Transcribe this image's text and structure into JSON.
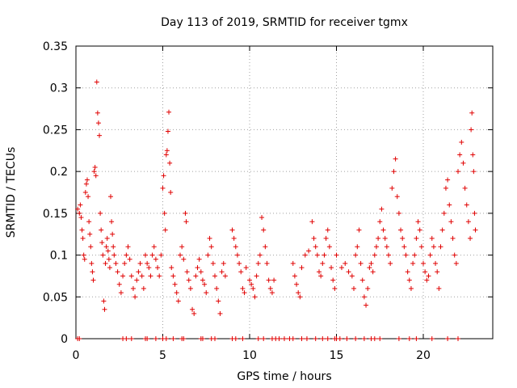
{
  "chart_data": {
    "type": "scatter",
    "title": "Day 113 of 2019, SRMTID for receiver tgmx",
    "xlabel": "GPS time / hours",
    "ylabel": "SRMTID / TECUs",
    "xlim": [
      0,
      24
    ],
    "ylim": [
      0,
      0.35
    ],
    "xticks": [
      {
        "value": 0,
        "label": "0"
      },
      {
        "value": 5,
        "label": "5"
      },
      {
        "value": 10,
        "label": "10"
      },
      {
        "value": 15,
        "label": "15"
      },
      {
        "value": 20,
        "label": "20"
      }
    ],
    "yticks": [
      {
        "value": 0,
        "label": "0"
      },
      {
        "value": 0.05,
        "label": "0.05"
      },
      {
        "value": 0.1,
        "label": "0.1"
      },
      {
        "value": 0.15,
        "label": "0.15"
      },
      {
        "value": 0.2,
        "label": "0.2"
      },
      {
        "value": 0.25,
        "label": "0.25"
      },
      {
        "value": 0.3,
        "label": "0.3"
      },
      {
        "value": 0.35,
        "label": "0.35"
      }
    ],
    "grid": true,
    "marker": "+",
    "series_color": "#e00000",
    "series": [
      {
        "name": "SRMTID",
        "points": [
          [
            0.1,
            0.155
          ],
          [
            0.2,
            0.15
          ],
          [
            0.25,
            0.16
          ],
          [
            0.3,
            0.145
          ],
          [
            0.35,
            0.13
          ],
          [
            0.4,
            0.12
          ],
          [
            0.45,
            0.1
          ],
          [
            0.5,
            0.095
          ],
          [
            0.55,
            0.175
          ],
          [
            0.6,
            0.185
          ],
          [
            0.65,
            0.19
          ],
          [
            0.7,
            0.17
          ],
          [
            0.75,
            0.14
          ],
          [
            0.8,
            0.125
          ],
          [
            0.85,
            0.11
          ],
          [
            0.9,
            0.09
          ],
          [
            0.95,
            0.08
          ],
          [
            1.0,
            0.07
          ],
          [
            1.05,
            0.2
          ],
          [
            1.1,
            0.205
          ],
          [
            1.15,
            0.195
          ],
          [
            1.2,
            0.307
          ],
          [
            1.25,
            0.27
          ],
          [
            1.3,
            0.258
          ],
          [
            1.35,
            0.243
          ],
          [
            1.4,
            0.15
          ],
          [
            1.45,
            0.13
          ],
          [
            1.5,
            0.115
          ],
          [
            1.55,
            0.1
          ],
          [
            1.6,
            0.045
          ],
          [
            1.65,
            0.035
          ],
          [
            1.7,
            0.09
          ],
          [
            1.75,
            0.11
          ],
          [
            1.8,
            0.12
          ],
          [
            1.85,
            0.105
          ],
          [
            1.9,
            0.095
          ],
          [
            1.95,
            0.085
          ],
          [
            2.0,
            0.17
          ],
          [
            2.05,
            0.14
          ],
          [
            2.1,
            0.125
          ],
          [
            2.15,
            0.11
          ],
          [
            2.2,
            0.1
          ],
          [
            2.3,
            0.09
          ],
          [
            2.4,
            0.08
          ],
          [
            2.5,
            0.065
          ],
          [
            2.6,
            0.055
          ],
          [
            2.7,
            0.075
          ],
          [
            2.8,
            0.09
          ],
          [
            2.9,
            0.1
          ],
          [
            3.0,
            0.11
          ],
          [
            3.1,
            0.095
          ],
          [
            3.2,
            0.075
          ],
          [
            3.3,
            0.06
          ],
          [
            3.4,
            0.05
          ],
          [
            3.5,
            0.07
          ],
          [
            3.6,
            0.08
          ],
          [
            3.7,
            0.09
          ],
          [
            3.8,
            0.075
          ],
          [
            3.9,
            0.06
          ],
          [
            4.0,
            0.1
          ],
          [
            4.1,
            0.09
          ],
          [
            4.2,
            0.085
          ],
          [
            4.3,
            0.075
          ],
          [
            4.4,
            0.1
          ],
          [
            4.5,
            0.11
          ],
          [
            4.6,
            0.095
          ],
          [
            4.7,
            0.085
          ],
          [
            4.8,
            0.075
          ],
          [
            4.9,
            0.1
          ],
          [
            5.0,
            0.18
          ],
          [
            5.05,
            0.195
          ],
          [
            5.1,
            0.15
          ],
          [
            5.15,
            0.13
          ],
          [
            5.2,
            0.22
          ],
          [
            5.25,
            0.225
          ],
          [
            5.3,
            0.248
          ],
          [
            5.35,
            0.271
          ],
          [
            5.4,
            0.21
          ],
          [
            5.45,
            0.175
          ],
          [
            5.5,
            0.085
          ],
          [
            5.6,
            0.075
          ],
          [
            5.7,
            0.065
          ],
          [
            5.8,
            0.055
          ],
          [
            5.9,
            0.045
          ],
          [
            6.0,
            0.1
          ],
          [
            6.1,
            0.11
          ],
          [
            6.2,
            0.095
          ],
          [
            6.3,
            0.15
          ],
          [
            6.35,
            0.14
          ],
          [
            6.4,
            0.08
          ],
          [
            6.5,
            0.07
          ],
          [
            6.6,
            0.06
          ],
          [
            6.7,
            0.035
          ],
          [
            6.8,
            0.03
          ],
          [
            6.9,
            0.075
          ],
          [
            7.0,
            0.085
          ],
          [
            7.1,
            0.095
          ],
          [
            7.2,
            0.08
          ],
          [
            7.3,
            0.07
          ],
          [
            7.4,
            0.065
          ],
          [
            7.5,
            0.055
          ],
          [
            7.6,
            0.1
          ],
          [
            7.7,
            0.12
          ],
          [
            7.8,
            0.11
          ],
          [
            7.9,
            0.09
          ],
          [
            8.0,
            0.075
          ],
          [
            8.1,
            0.06
          ],
          [
            8.2,
            0.045
          ],
          [
            8.3,
            0.03
          ],
          [
            8.4,
            0.08
          ],
          [
            8.5,
            0.09
          ],
          [
            8.6,
            0.075
          ],
          [
            9.0,
            0.13
          ],
          [
            9.1,
            0.12
          ],
          [
            9.2,
            0.11
          ],
          [
            9.3,
            0.1
          ],
          [
            9.4,
            0.09
          ],
          [
            9.5,
            0.08
          ],
          [
            9.6,
            0.06
          ],
          [
            9.7,
            0.055
          ],
          [
            9.8,
            0.085
          ],
          [
            10.0,
            0.07
          ],
          [
            10.1,
            0.065
          ],
          [
            10.2,
            0.06
          ],
          [
            10.3,
            0.05
          ],
          [
            10.4,
            0.075
          ],
          [
            10.5,
            0.09
          ],
          [
            10.6,
            0.1
          ],
          [
            10.7,
            0.145
          ],
          [
            10.8,
            0.13
          ],
          [
            10.9,
            0.11
          ],
          [
            11.0,
            0.09
          ],
          [
            11.1,
            0.07
          ],
          [
            11.2,
            0.06
          ],
          [
            11.3,
            0.055
          ],
          [
            11.4,
            0.07
          ],
          [
            12.5,
            0.09
          ],
          [
            12.6,
            0.075
          ],
          [
            12.7,
            0.065
          ],
          [
            12.8,
            0.055
          ],
          [
            12.9,
            0.05
          ],
          [
            13.0,
            0.085
          ],
          [
            13.2,
            0.1
          ],
          [
            13.4,
            0.105
          ],
          [
            13.6,
            0.14
          ],
          [
            13.7,
            0.12
          ],
          [
            13.8,
            0.11
          ],
          [
            13.9,
            0.1
          ],
          [
            14.0,
            0.08
          ],
          [
            14.1,
            0.075
          ],
          [
            14.2,
            0.09
          ],
          [
            14.3,
            0.1
          ],
          [
            14.4,
            0.12
          ],
          [
            14.5,
            0.13
          ],
          [
            14.6,
            0.11
          ],
          [
            14.7,
            0.085
          ],
          [
            14.8,
            0.07
          ],
          [
            14.9,
            0.06
          ],
          [
            15.0,
            0.1
          ],
          [
            15.3,
            0.085
          ],
          [
            15.5,
            0.09
          ],
          [
            15.7,
            0.08
          ],
          [
            15.9,
            0.075
          ],
          [
            16.0,
            0.06
          ],
          [
            16.1,
            0.1
          ],
          [
            16.2,
            0.11
          ],
          [
            16.3,
            0.13
          ],
          [
            16.4,
            0.09
          ],
          [
            16.5,
            0.07
          ],
          [
            16.6,
            0.05
          ],
          [
            16.7,
            0.04
          ],
          [
            16.8,
            0.06
          ],
          [
            16.9,
            0.085
          ],
          [
            17.0,
            0.09
          ],
          [
            17.1,
            0.08
          ],
          [
            17.2,
            0.1
          ],
          [
            17.3,
            0.11
          ],
          [
            17.4,
            0.12
          ],
          [
            17.5,
            0.14
          ],
          [
            17.6,
            0.155
          ],
          [
            17.7,
            0.13
          ],
          [
            17.8,
            0.12
          ],
          [
            17.9,
            0.11
          ],
          [
            18.0,
            0.1
          ],
          [
            18.1,
            0.09
          ],
          [
            18.2,
            0.18
          ],
          [
            18.3,
            0.2
          ],
          [
            18.4,
            0.215
          ],
          [
            18.5,
            0.17
          ],
          [
            18.6,
            0.15
          ],
          [
            18.7,
            0.13
          ],
          [
            18.8,
            0.12
          ],
          [
            18.9,
            0.11
          ],
          [
            19.0,
            0.1
          ],
          [
            19.1,
            0.08
          ],
          [
            19.2,
            0.07
          ],
          [
            19.3,
            0.06
          ],
          [
            19.4,
            0.09
          ],
          [
            19.5,
            0.1
          ],
          [
            19.6,
            0.12
          ],
          [
            19.7,
            0.14
          ],
          [
            19.8,
            0.13
          ],
          [
            19.9,
            0.11
          ],
          [
            20.0,
            0.09
          ],
          [
            20.1,
            0.08
          ],
          [
            20.2,
            0.07
          ],
          [
            20.3,
            0.075
          ],
          [
            20.4,
            0.1
          ],
          [
            20.5,
            0.12
          ],
          [
            20.6,
            0.11
          ],
          [
            20.7,
            0.09
          ],
          [
            20.8,
            0.08
          ],
          [
            20.9,
            0.06
          ],
          [
            21.0,
            0.11
          ],
          [
            21.1,
            0.13
          ],
          [
            21.2,
            0.15
          ],
          [
            21.3,
            0.18
          ],
          [
            21.4,
            0.19
          ],
          [
            21.5,
            0.16
          ],
          [
            21.6,
            0.14
          ],
          [
            21.7,
            0.12
          ],
          [
            21.8,
            0.1
          ],
          [
            21.9,
            0.09
          ],
          [
            22.0,
            0.2
          ],
          [
            22.1,
            0.22
          ],
          [
            22.2,
            0.235
          ],
          [
            22.3,
            0.21
          ],
          [
            22.4,
            0.18
          ],
          [
            22.5,
            0.16
          ],
          [
            22.6,
            0.14
          ],
          [
            22.7,
            0.12
          ],
          [
            22.75,
            0.25
          ],
          [
            22.8,
            0.27
          ],
          [
            22.85,
            0.22
          ],
          [
            22.9,
            0.2
          ],
          [
            22.95,
            0.15
          ],
          [
            23.0,
            0.13
          ]
        ]
      }
    ],
    "zero_marks_hours": [
      0.1,
      0.2,
      2.7,
      2.9,
      3.2,
      4.0,
      4.1,
      4.6,
      5.0,
      5.2,
      5.6,
      6.1,
      6.2,
      7.2,
      7.3,
      7.8,
      8.0,
      9.0,
      9.2,
      9.6,
      10.5,
      10.8,
      11.3,
      11.5,
      11.7,
      12.0,
      12.3,
      12.5,
      13.0,
      13.3,
      13.8,
      14.2,
      14.5,
      14.9,
      15.0,
      15.2,
      15.6,
      16.1,
      16.6,
      17.0,
      17.2,
      17.5,
      18.6,
      19.2,
      19.6,
      20.5,
      21.4,
      22.0
    ]
  }
}
